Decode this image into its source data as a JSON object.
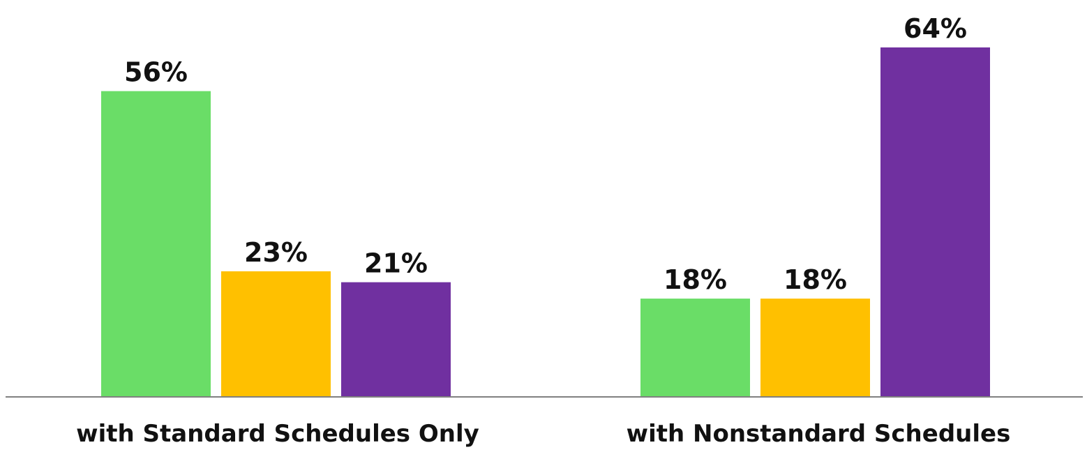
{
  "chart_data": {
    "type": "bar",
    "categories": [
      "with Standard Schedules Only",
      "with Nonstandard Schedules"
    ],
    "series": [
      {
        "color": "#6ADD67",
        "values": [
          56,
          18
        ],
        "labels": [
          "56%",
          "18%"
        ]
      },
      {
        "color": "#FFC000",
        "values": [
          23,
          18
        ],
        "labels": [
          "23%",
          "18%"
        ]
      },
      {
        "color": "#7030A0",
        "values": [
          21,
          64
        ],
        "labels": [
          "21%",
          "64%"
        ]
      }
    ],
    "ylim": [
      0,
      64
    ],
    "grid": false,
    "legend": "none",
    "axis_color": "#808080"
  }
}
